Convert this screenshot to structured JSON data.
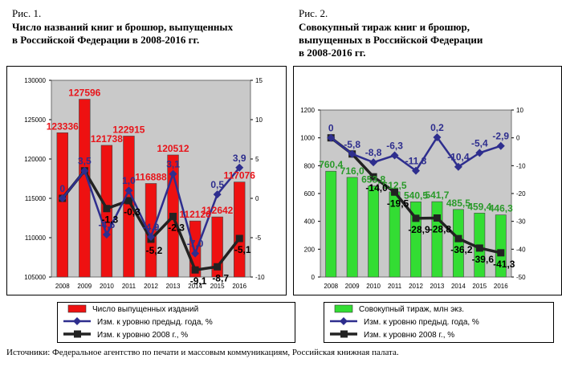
{
  "figures": [
    {
      "label": "Рис. 1.",
      "title_line1": "Число названий книг и брошюр, выпущенных",
      "title_line2": "в Российской Федерации в 2008-2016 гг."
    },
    {
      "label": "Рис. 2.",
      "title_line1": "Совокупный тираж книг и брошюр,",
      "title_line2": "выпущенных в Российской Федерации",
      "title_line3": "в 2008-2016 гг."
    }
  ],
  "source": "Источники: Федеральное агентство по печати и массовым коммуникациям, Российская книжная палата.",
  "colors": {
    "bar1": "#ee1111",
    "bar2": "#33dd33",
    "blue": "#2e2e8e",
    "dark": "#222222",
    "label1": "#e8141a",
    "label2": "#2a9a2a",
    "plot_bg": "#c9c9c9"
  },
  "chart_data": [
    {
      "type": "bar",
      "categories": [
        "2008",
        "2009",
        "2010",
        "2011",
        "2012",
        "2013",
        "2014",
        "2015",
        "2016"
      ],
      "ylim": [
        105000,
        130000
      ],
      "yticks": [
        105000,
        110000,
        115000,
        120000,
        125000,
        130000
      ],
      "y2lim": [
        -10,
        15
      ],
      "y2ticks": [
        -10,
        -5,
        0,
        5,
        10,
        15
      ],
      "bars": {
        "name": "Число выпущенных изданий",
        "values": [
          123336,
          127596,
          121738,
          122915,
          116888,
          120512,
          112126,
          112642,
          117076
        ],
        "labels": [
          "123336",
          "127596",
          "121738",
          "122915",
          "116888",
          "120512",
          "112126",
          "112642",
          "117076"
        ]
      },
      "series": [
        {
          "name": "Изм. к уровню предыд. года, %",
          "values": [
            0,
            3.5,
            -4.6,
            1.0,
            -4.9,
            3.1,
            -7.0,
            0.5,
            3.9
          ],
          "labels": [
            "0",
            "3,5",
            "-4,6",
            "1,0",
            "-4,9",
            "3,1",
            "-7,0",
            "0,5",
            "3,9"
          ]
        },
        {
          "name": "Изм. к уровню 2008 г., %",
          "values": [
            0,
            3.5,
            -1.3,
            -0.3,
            -5.2,
            -2.3,
            -9.1,
            -8.7,
            -5.1
          ],
          "labels": [
            "",
            "",
            "-1,3",
            "-0,3",
            "-5,2",
            "-2,3",
            "-9,1",
            "-8,7",
            "-5,1"
          ]
        }
      ]
    },
    {
      "type": "bar",
      "categories": [
        "2008",
        "2009",
        "2010",
        "2011",
        "2012",
        "2013",
        "2014",
        "2015",
        "2016"
      ],
      "ylim": [
        0,
        1200
      ],
      "yticks": [
        0,
        200,
        400,
        600,
        800,
        1000,
        1200
      ],
      "y2lim": [
        -50,
        10
      ],
      "y2ticks": [
        -50,
        -40,
        -30,
        -20,
        -10,
        0,
        10
      ],
      "bars": {
        "name": "Совокупный тираж, млн экз.",
        "values": [
          760.4,
          716.0,
          653.8,
          612.5,
          540.5,
          541.7,
          485.5,
          459.4,
          446.3
        ],
        "labels": [
          "760,4",
          "716,0",
          "653,8",
          "612,5",
          "540,5",
          "541,7",
          "485,5",
          "459,4",
          "446,3"
        ]
      },
      "series": [
        {
          "name": "Изм. к уровню предыд. года, %",
          "values": [
            0,
            -5.8,
            -8.8,
            -6.3,
            -11.8,
            0.2,
            -10.4,
            -5.4,
            -2.9
          ],
          "labels": [
            "0",
            "-5,8",
            "-8,8",
            "-6,3",
            "-11,8",
            "0,2",
            "-10,4",
            "-5,4",
            "-2,9"
          ]
        },
        {
          "name": "Изм. к уровню 2008 г., %",
          "values": [
            0,
            -5.8,
            -14.0,
            -19.5,
            -28.9,
            -28.8,
            -36.2,
            -39.6,
            -41.3
          ],
          "labels": [
            "",
            "",
            "-14,0",
            "-19,5",
            "-28,9",
            "-28,8",
            "-36,2",
            "-39,6",
            "-41,3"
          ]
        }
      ]
    }
  ]
}
